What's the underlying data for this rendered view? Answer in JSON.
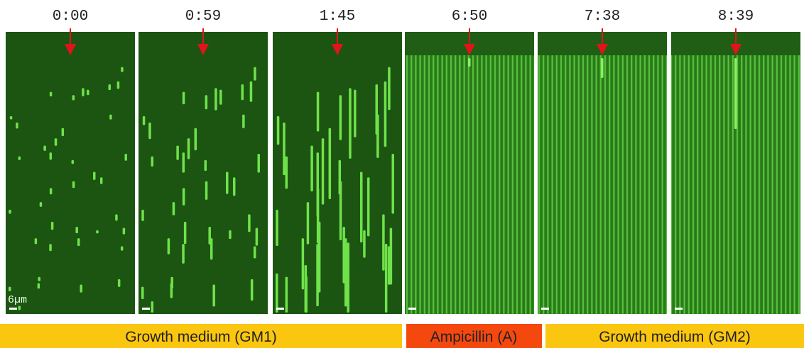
{
  "panels": [
    {
      "time": "0:00"
    },
    {
      "time": "0:59"
    },
    {
      "time": "1:45"
    },
    {
      "time": "6:50"
    },
    {
      "time": "7:38"
    },
    {
      "time": "8:39"
    }
  ],
  "scale_bar": "6µm",
  "conditions": [
    {
      "label": "Growth medium (GM1)"
    },
    {
      "label": "Ampicillin (A)"
    },
    {
      "label": "Growth medium (GM2)"
    }
  ]
}
